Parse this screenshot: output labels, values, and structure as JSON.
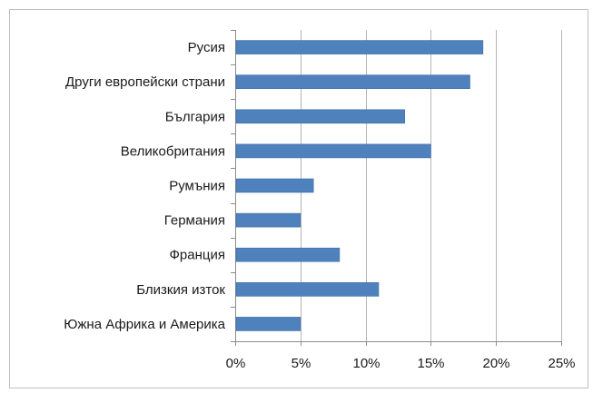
{
  "chart_data": {
    "type": "bar",
    "orientation": "horizontal",
    "title": "",
    "xlabel": "",
    "ylabel": "",
    "categories": [
      "Русия",
      "Други европейски страни",
      "България",
      "Великобритания",
      "Румъния",
      "Германия",
      "Франция",
      "Близкия изток",
      "Южна Африка и Америка"
    ],
    "values": [
      19,
      18,
      13,
      15,
      6,
      5,
      8,
      11,
      5
    ],
    "value_unit": "%",
    "xlim": [
      0,
      25
    ],
    "x_ticks": [
      0,
      5,
      10,
      15,
      20,
      25
    ],
    "x_tick_labels": [
      "0%",
      "5%",
      "10%",
      "15%",
      "20%",
      "25%"
    ],
    "grid": "vertical",
    "legend": "none",
    "bar_color": "#4f81bd"
  }
}
